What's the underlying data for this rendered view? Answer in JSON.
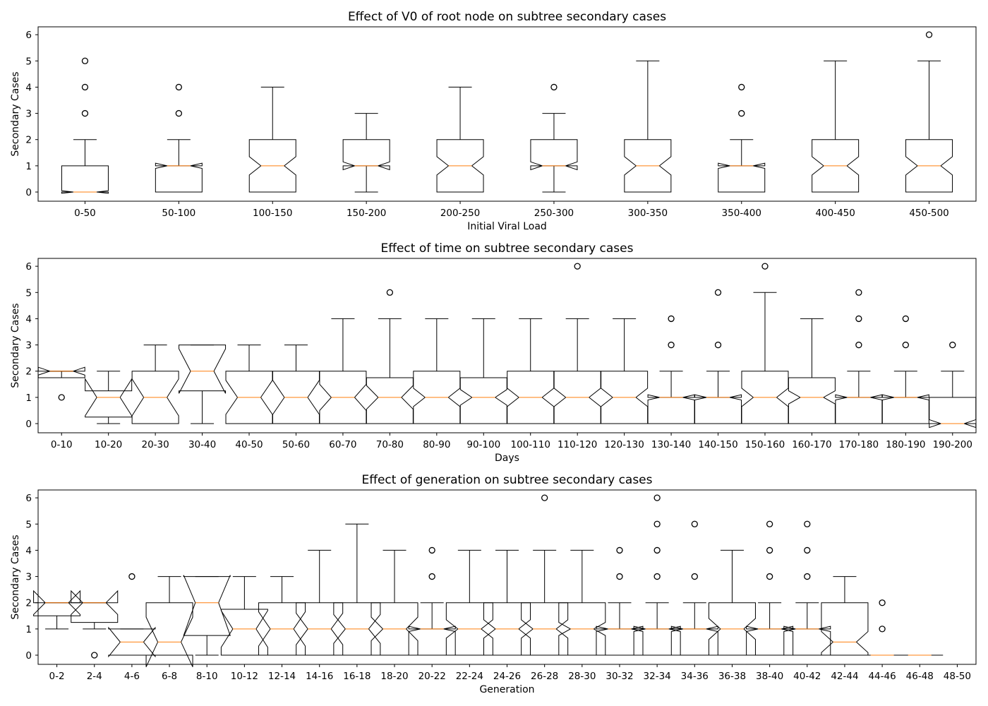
{
  "chart_data": [
    {
      "type": "boxplot",
      "title": "Effect of V0 of root node on subtree secondary cases",
      "xlabel": "Initial Viral Load",
      "ylabel": "Secondary Cases",
      "ylim": [
        -0.35,
        6.3
      ],
      "yticks": [
        0,
        1,
        2,
        3,
        4,
        5,
        6
      ],
      "categories": [
        "0-50",
        "50-100",
        "100-150",
        "150-200",
        "200-250",
        "250-300",
        "300-350",
        "350-400",
        "400-450",
        "450-500"
      ],
      "boxes": [
        {
          "lw": 0,
          "q1": 0,
          "med": 0,
          "q3": 1,
          "uw": 2,
          "nlo": -0.05,
          "nhi": 0.05,
          "fliers": [
            3,
            4,
            5
          ]
        },
        {
          "lw": 0,
          "q1": 0,
          "med": 1,
          "q3": 1,
          "uw": 2,
          "nlo": 0.9,
          "nhi": 1.1,
          "fliers": [
            3,
            4
          ]
        },
        {
          "lw": 0,
          "q1": 0,
          "med": 1,
          "q3": 2,
          "uw": 4,
          "nlo": 0.65,
          "nhi": 1.35,
          "fliers": []
        },
        {
          "lw": 0,
          "q1": 1,
          "med": 1,
          "q3": 2,
          "uw": 3,
          "nlo": 0.85,
          "nhi": 1.15,
          "fliers": []
        },
        {
          "lw": 0,
          "q1": 0,
          "med": 1,
          "q3": 2,
          "uw": 4,
          "nlo": 0.65,
          "nhi": 1.35,
          "fliers": []
        },
        {
          "lw": 0,
          "q1": 1,
          "med": 1,
          "q3": 2,
          "uw": 3,
          "nlo": 0.85,
          "nhi": 1.15,
          "fliers": [
            4
          ]
        },
        {
          "lw": 0,
          "q1": 0,
          "med": 1,
          "q3": 2,
          "uw": 5,
          "nlo": 0.65,
          "nhi": 1.35,
          "fliers": []
        },
        {
          "lw": 0,
          "q1": 0,
          "med": 1,
          "q3": 1,
          "uw": 2,
          "nlo": 0.9,
          "nhi": 1.1,
          "fliers": [
            3,
            4
          ]
        },
        {
          "lw": 0,
          "q1": 0,
          "med": 1,
          "q3": 2,
          "uw": 5,
          "nlo": 0.65,
          "nhi": 1.35,
          "fliers": []
        },
        {
          "lw": 0,
          "q1": 0,
          "med": 1,
          "q3": 2,
          "uw": 5,
          "nlo": 0.65,
          "nhi": 1.35,
          "fliers": [
            6
          ]
        }
      ]
    },
    {
      "type": "boxplot",
      "title": "Effect of time on subtree secondary cases",
      "xlabel": "Days",
      "ylabel": "Secondary Cases",
      "ylim": [
        -0.35,
        6.3
      ],
      "yticks": [
        0,
        1,
        2,
        3,
        4,
        5,
        6
      ],
      "categories": [
        "0-10",
        "10-20",
        "20-30",
        "30-40",
        "40-50",
        "50-60",
        "60-70",
        "70-80",
        "80-90",
        "90-100",
        "100-110",
        "110-120",
        "120-130",
        "130-140",
        "140-150",
        "150-160",
        "160-170",
        "170-180",
        "180-190",
        "190-200"
      ],
      "boxes": [
        {
          "lw": 2,
          "q1": 1.75,
          "med": 2,
          "q3": 2,
          "uw": 2,
          "nlo": 1.85,
          "nhi": 2.15,
          "fliers": [
            1
          ]
        },
        {
          "lw": 0,
          "q1": 0.25,
          "med": 1,
          "q3": 1.25,
          "uw": 2,
          "nlo": 0.3,
          "nhi": 1.7,
          "fliers": []
        },
        {
          "lw": 0,
          "q1": 0,
          "med": 1,
          "q3": 2,
          "uw": 3,
          "nlo": 0.3,
          "nhi": 1.7,
          "fliers": []
        },
        {
          "lw": 0,
          "q1": 1.25,
          "med": 2,
          "q3": 3,
          "uw": 3,
          "nlo": 1.15,
          "nhi": 2.85,
          "fliers": []
        },
        {
          "lw": 0,
          "q1": 0,
          "med": 1,
          "q3": 2,
          "uw": 3,
          "nlo": 0.35,
          "nhi": 1.65,
          "fliers": []
        },
        {
          "lw": 0,
          "q1": 0,
          "med": 1,
          "q3": 2,
          "uw": 3,
          "nlo": 0.35,
          "nhi": 1.65,
          "fliers": []
        },
        {
          "lw": 0,
          "q1": 0,
          "med": 1,
          "q3": 2,
          "uw": 4,
          "nlo": 0.5,
          "nhi": 1.5,
          "fliers": []
        },
        {
          "lw": 0,
          "q1": 0,
          "med": 1,
          "q3": 1.75,
          "uw": 4,
          "nlo": 0.55,
          "nhi": 1.45,
          "fliers": [
            5
          ]
        },
        {
          "lw": 0,
          "q1": 0,
          "med": 1,
          "q3": 2,
          "uw": 4,
          "nlo": 0.65,
          "nhi": 1.35,
          "fliers": []
        },
        {
          "lw": 0,
          "q1": 0,
          "med": 1,
          "q3": 1.75,
          "uw": 4,
          "nlo": 0.7,
          "nhi": 1.3,
          "fliers": []
        },
        {
          "lw": 0,
          "q1": 0,
          "med": 1,
          "q3": 2,
          "uw": 4,
          "nlo": 0.65,
          "nhi": 1.35,
          "fliers": []
        },
        {
          "lw": 0,
          "q1": 0,
          "med": 1,
          "q3": 2,
          "uw": 4,
          "nlo": 0.65,
          "nhi": 1.35,
          "fliers": [
            6
          ]
        },
        {
          "lw": 0,
          "q1": 0,
          "med": 1,
          "q3": 2,
          "uw": 4,
          "nlo": 0.65,
          "nhi": 1.35,
          "fliers": []
        },
        {
          "lw": 0,
          "q1": 0,
          "med": 1,
          "q3": 1,
          "uw": 2,
          "nlo": 0.9,
          "nhi": 1.1,
          "fliers": [
            3,
            4
          ]
        },
        {
          "lw": 0,
          "q1": 0,
          "med": 1,
          "q3": 1,
          "uw": 2,
          "nlo": 0.9,
          "nhi": 1.1,
          "fliers": [
            3,
            5
          ]
        },
        {
          "lw": 0,
          "q1": 0,
          "med": 1,
          "q3": 2,
          "uw": 5,
          "nlo": 0.65,
          "nhi": 1.35,
          "fliers": [
            6
          ]
        },
        {
          "lw": 0,
          "q1": 0,
          "med": 1,
          "q3": 1.75,
          "uw": 4,
          "nlo": 0.75,
          "nhi": 1.25,
          "fliers": []
        },
        {
          "lw": 0,
          "q1": 0,
          "med": 1,
          "q3": 1,
          "uw": 2,
          "nlo": 0.9,
          "nhi": 1.1,
          "fliers": [
            3,
            4,
            5
          ]
        },
        {
          "lw": 0,
          "q1": 0,
          "med": 1,
          "q3": 1,
          "uw": 2,
          "nlo": 0.9,
          "nhi": 1.1,
          "fliers": [
            3,
            4
          ]
        },
        {
          "lw": 0,
          "q1": 0,
          "med": 0,
          "q3": 1,
          "uw": 2,
          "nlo": -0.15,
          "nhi": 0.15,
          "fliers": [
            3
          ]
        }
      ]
    },
    {
      "type": "boxplot",
      "title": "Effect of generation on subtree secondary cases",
      "xlabel": "Generation",
      "ylabel": "Secondary Cases",
      "ylim": [
        -0.35,
        6.3
      ],
      "yticks": [
        0,
        1,
        2,
        3,
        4,
        5,
        6
      ],
      "categories": [
        "0-2",
        "2-4",
        "4-6",
        "6-8",
        "8-10",
        "10-12",
        "12-14",
        "14-16",
        "16-18",
        "18-20",
        "20-22",
        "22-24",
        "24-26",
        "26-28",
        "28-30",
        "30-32",
        "32-34",
        "34-36",
        "36-38",
        "38-40",
        "40-42",
        "42-44",
        "44-46",
        "46-48",
        "48-50"
      ],
      "boxes": [
        {
          "lw": 1,
          "q1": 1.5,
          "med": 2,
          "q3": 2,
          "uw": 2,
          "nlo": 1.55,
          "nhi": 2.45,
          "fliers": []
        },
        {
          "lw": 1,
          "q1": 1.25,
          "med": 2,
          "q3": 2,
          "uw": 2,
          "nlo": 1.55,
          "nhi": 2.45,
          "fliers": [
            0
          ]
        },
        {
          "lw": 0,
          "q1": 0,
          "med": 0.5,
          "q3": 1,
          "uw": 1,
          "nlo": -0.05,
          "nhi": 1.05,
          "fliers": [
            3
          ]
        },
        {
          "lw": 0,
          "q1": 0,
          "med": 0.5,
          "q3": 2,
          "uw": 3,
          "nlo": -0.45,
          "nhi": 1.45,
          "fliers": []
        },
        {
          "lw": 0,
          "q1": 0.75,
          "med": 2,
          "q3": 3,
          "uw": 3,
          "nlo": 0.75,
          "nhi": 3.05,
          "fliers": []
        },
        {
          "lw": 0,
          "q1": 0,
          "med": 1,
          "q3": 1.75,
          "uw": 3,
          "nlo": 0.3,
          "nhi": 1.7,
          "fliers": []
        },
        {
          "lw": 0,
          "q1": 0,
          "med": 1,
          "q3": 2,
          "uw": 3,
          "nlo": 0.35,
          "nhi": 1.65,
          "fliers": []
        },
        {
          "lw": 0,
          "q1": 0,
          "med": 1,
          "q3": 2,
          "uw": 4,
          "nlo": 0.4,
          "nhi": 1.6,
          "fliers": []
        },
        {
          "lw": 0,
          "q1": 0,
          "med": 1,
          "q3": 2,
          "uw": 5,
          "nlo": 0.45,
          "nhi": 1.55,
          "fliers": []
        },
        {
          "lw": 0,
          "q1": 0,
          "med": 1,
          "q3": 2,
          "uw": 4,
          "nlo": 0.55,
          "nhi": 1.45,
          "fliers": []
        },
        {
          "lw": 0,
          "q1": 0,
          "med": 1,
          "q3": 1,
          "uw": 2,
          "nlo": 0.9,
          "nhi": 1.1,
          "fliers": [
            3,
            4
          ]
        },
        {
          "lw": 0,
          "q1": 0,
          "med": 1,
          "q3": 2,
          "uw": 4,
          "nlo": 0.65,
          "nhi": 1.35,
          "fliers": []
        },
        {
          "lw": 0,
          "q1": 0,
          "med": 1,
          "q3": 2,
          "uw": 4,
          "nlo": 0.65,
          "nhi": 1.35,
          "fliers": []
        },
        {
          "lw": 0,
          "q1": 0,
          "med": 1,
          "q3": 2,
          "uw": 4,
          "nlo": 0.65,
          "nhi": 1.35,
          "fliers": [
            6
          ]
        },
        {
          "lw": 0,
          "q1": 0,
          "med": 1,
          "q3": 2,
          "uw": 4,
          "nlo": 0.75,
          "nhi": 1.25,
          "fliers": []
        },
        {
          "lw": 0,
          "q1": 0,
          "med": 1,
          "q3": 1,
          "uw": 2,
          "nlo": 0.9,
          "nhi": 1.1,
          "fliers": [
            3,
            4
          ]
        },
        {
          "lw": 0,
          "q1": 0,
          "med": 1,
          "q3": 1,
          "uw": 2,
          "nlo": 0.9,
          "nhi": 1.1,
          "fliers": [
            3,
            4,
            5,
            6
          ]
        },
        {
          "lw": 0,
          "q1": 0,
          "med": 1,
          "q3": 1,
          "uw": 2,
          "nlo": 0.9,
          "nhi": 1.1,
          "fliers": [
            3,
            5
          ]
        },
        {
          "lw": 0,
          "q1": 0,
          "med": 1,
          "q3": 2,
          "uw": 4,
          "nlo": 0.6,
          "nhi": 1.4,
          "fliers": []
        },
        {
          "lw": 0,
          "q1": 0,
          "med": 1,
          "q3": 1,
          "uw": 2,
          "nlo": 0.9,
          "nhi": 1.1,
          "fliers": [
            3,
            4,
            5
          ]
        },
        {
          "lw": 0,
          "q1": 0,
          "med": 1,
          "q3": 1,
          "uw": 2,
          "nlo": 0.9,
          "nhi": 1.1,
          "fliers": [
            3,
            4,
            5
          ]
        },
        {
          "lw": 0,
          "q1": 0,
          "med": 0.5,
          "q3": 2,
          "uw": 3,
          "nlo": 0.1,
          "nhi": 0.9,
          "fliers": []
        },
        {
          "lw": 0,
          "q1": 0,
          "med": 0,
          "q3": 0,
          "uw": 0,
          "nlo": 0,
          "nhi": 0,
          "fliers": [
            1,
            2
          ]
        },
        {
          "lw": 0,
          "q1": 0,
          "med": 0,
          "q3": 0,
          "uw": 0,
          "nlo": 0,
          "nhi": 0,
          "fliers": []
        },
        null
      ]
    }
  ]
}
